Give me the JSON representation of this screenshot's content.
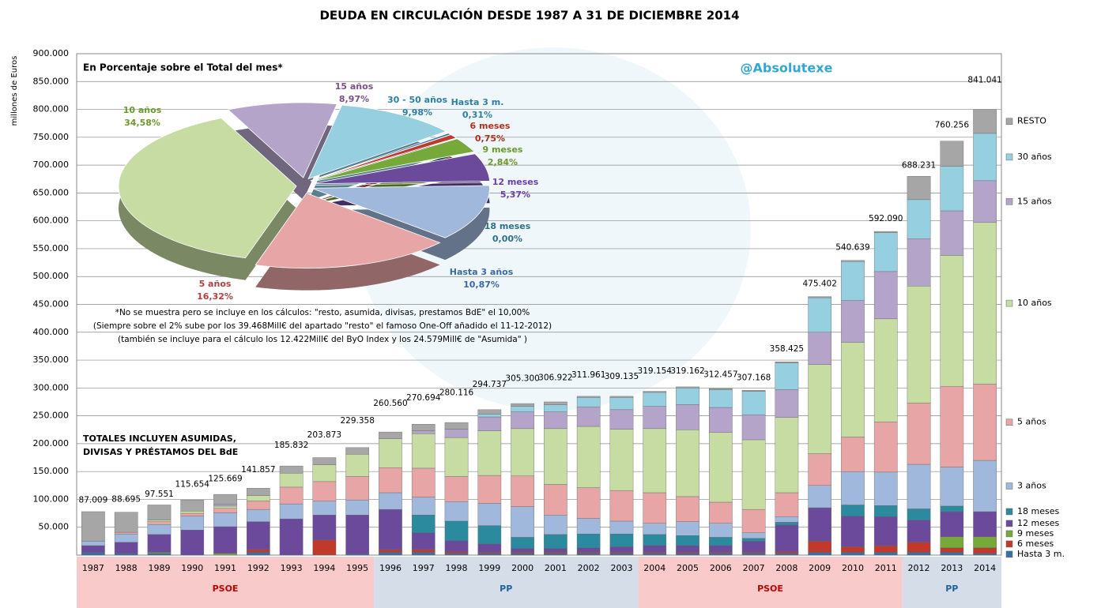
{
  "chart_data": [
    {
      "type": "bar",
      "stacked": true,
      "title": "DEUDA EN CIRCULACIÓN DESDE 1987 A 31 DE DICIEMBRE 2014",
      "y_axis_label": "millones de Euros",
      "categories": [
        "1987",
        "1988",
        "1989",
        "1990",
        "1991",
        "1992",
        "1993",
        "1994",
        "1995",
        "1996",
        "1997",
        "1998",
        "1999",
        "2000",
        "2001",
        "2002",
        "2003",
        "2004",
        "2005",
        "2006",
        "2007",
        "2008",
        "2009",
        "2010",
        "2011",
        "2012",
        "2013",
        "2014"
      ],
      "series": [
        {
          "name": "Hasta 3 m.",
          "color": "#3a6ea5",
          "values": [
            5000,
            3000,
            3000,
            0,
            0,
            5000,
            0,
            0,
            2000,
            5000,
            5000,
            3000,
            3000,
            3000,
            3000,
            3000,
            3000,
            3000,
            3000,
            3000,
            3000,
            3000,
            5000,
            5000,
            5000,
            5000,
            5000,
            3000
          ]
        },
        {
          "name": "6 meses",
          "color": "#c0392b",
          "values": [
            0,
            0,
            0,
            0,
            0,
            5000,
            0,
            27000,
            0,
            5000,
            5000,
            3000,
            2000,
            2000,
            2000,
            2000,
            2000,
            2000,
            2000,
            2000,
            2000,
            3000,
            20000,
            10000,
            12000,
            18000,
            8000,
            10000
          ]
        },
        {
          "name": "9 meses",
          "color": "#77a83a",
          "values": [
            0,
            0,
            2000,
            0,
            3000,
            0,
            0,
            0,
            0,
            0,
            0,
            0,
            0,
            0,
            0,
            0,
            0,
            0,
            0,
            0,
            0,
            0,
            0,
            0,
            0,
            0,
            20000,
            20000
          ]
        },
        {
          "name": "12 meses",
          "color": "#6b4a9c",
          "values": [
            12000,
            20000,
            32000,
            45000,
            48000,
            50000,
            65000,
            45000,
            70000,
            72000,
            30000,
            20000,
            15000,
            7000,
            7000,
            8000,
            10000,
            12000,
            12000,
            12000,
            20000,
            48000,
            60000,
            55000,
            52000,
            40000,
            45000,
            45000
          ]
        },
        {
          "name": "18 meses",
          "color": "#2b8a9e",
          "values": [
            0,
            0,
            0,
            0,
            0,
            0,
            0,
            0,
            0,
            0,
            32000,
            35000,
            33000,
            20000,
            25000,
            25000,
            23000,
            20000,
            18000,
            15000,
            5000,
            5000,
            0,
            20000,
            20000,
            20000,
            10000,
            0
          ]
        },
        {
          "name": "3 años",
          "color": "#9fb8dc",
          "values": [
            8000,
            15000,
            18000,
            25000,
            25000,
            22000,
            27000,
            25000,
            27000,
            30000,
            32000,
            35000,
            40000,
            55000,
            35000,
            28000,
            23000,
            20000,
            25000,
            25000,
            10000,
            10000,
            40000,
            60000,
            60000,
            80000,
            70000,
            92000
          ]
        },
        {
          "name": "5 años",
          "color": "#e8a5a5",
          "values": [
            0,
            3000,
            5000,
            5000,
            8000,
            15000,
            30000,
            35000,
            42000,
            45000,
            52000,
            45000,
            50000,
            55000,
            55000,
            55000,
            55000,
            55000,
            45000,
            38000,
            42000,
            43000,
            57000,
            62000,
            90000,
            110000,
            145000,
            137000
          ]
        },
        {
          "name": "10 años",
          "color": "#c6dca2",
          "values": [
            0,
            0,
            3000,
            4000,
            4000,
            10000,
            25000,
            30000,
            40000,
            52000,
            62000,
            70000,
            80000,
            85000,
            100000,
            110000,
            110000,
            115000,
            120000,
            125000,
            125000,
            135000,
            160000,
            170000,
            185000,
            210000,
            235000,
            290000
          ]
        },
        {
          "name": "15 años",
          "color": "#b4a4c9",
          "values": [
            0,
            0,
            0,
            0,
            3000,
            0,
            0,
            0,
            0,
            0,
            5000,
            15000,
            25000,
            30000,
            30000,
            35000,
            35000,
            40000,
            45000,
            45000,
            45000,
            50000,
            58000,
            75000,
            85000,
            85000,
            80000,
            75000
          ]
        },
        {
          "name": "30 años",
          "color": "#95cfe0",
          "values": [
            0,
            0,
            0,
            0,
            0,
            0,
            0,
            0,
            0,
            0,
            0,
            0,
            5000,
            10000,
            13000,
            17000,
            22000,
            25000,
            30000,
            32000,
            42000,
            48000,
            62000,
            70000,
            70000,
            70000,
            80000,
            85000
          ]
        },
        {
          "name": "RESTO",
          "color": "#a6a6a6",
          "values": [
            53000,
            36000,
            27000,
            20000,
            18000,
            13000,
            13000,
            13000,
            12000,
            12000,
            12000,
            12000,
            8000,
            5000,
            5000,
            2000,
            2000,
            2000,
            2000,
            2000,
            2000,
            2000,
            2000,
            2000,
            2000,
            42000,
            45000,
            43000
          ]
        }
      ],
      "totals": {
        "values": [
          87009,
          88695,
          97551,
          115654,
          125669,
          141857,
          185832,
          203873,
          229358,
          260560,
          270694,
          280116,
          294737,
          305300,
          306922,
          311961,
          309135,
          319154,
          319162,
          312457,
          307168,
          358425,
          475402,
          540639,
          592090,
          688231,
          760256,
          841041
        ],
        "value_labels": [
          "87.009",
          "88.695",
          "97.551",
          "115.654",
          "125.669",
          "141.857",
          "185.832",
          "203.873",
          "229.358",
          "260.560",
          "270.694",
          "280.116",
          "294.737",
          "305.300",
          "306.922",
          "311.961",
          "309.135",
          "319.154",
          "319.162",
          "312.457",
          "307.168",
          "358.425",
          "475.402",
          "540.639",
          "592.090",
          "688.231",
          "760.256",
          "841.041"
        ]
      },
      "ylim": [
        0,
        900000
      ],
      "yticks": [
        {
          "value": 50000,
          "label": "50.000"
        },
        {
          "value": 100000,
          "label": "100.000"
        },
        {
          "value": 150000,
          "label": "150.000"
        },
        {
          "value": 200000,
          "label": "200.000"
        },
        {
          "value": 250000,
          "label": "250.000"
        },
        {
          "value": 300000,
          "label": "300.000"
        },
        {
          "value": 350000,
          "label": "350.000"
        },
        {
          "value": 400000,
          "label": "400.000"
        },
        {
          "value": 450000,
          "label": "450.000"
        },
        {
          "value": 500000,
          "label": "500.000"
        },
        {
          "value": 550000,
          "label": "550.000"
        },
        {
          "value": 600000,
          "label": "600.000"
        },
        {
          "value": 650000,
          "label": "650.000"
        },
        {
          "value": 700000,
          "label": "700.000"
        },
        {
          "value": 750000,
          "label": "750.000"
        },
        {
          "value": 800000,
          "label": "800.000"
        },
        {
          "value": 850000,
          "label": "850.000"
        },
        {
          "value": 900000,
          "label": "900.000"
        }
      ],
      "grid": true,
      "legend": "right",
      "totals_note": [
        "TOTALES INCLUYEN ASUMIDAS,",
        "DIVISAS Y PRÉSTAMOS  DEL BdE"
      ],
      "governments": [
        "PSOE",
        "PP",
        "PSOE",
        "PP"
      ],
      "watermark": "@Absolutexe"
    },
    {
      "type": "pie",
      "title": "En Porcentaje sobre el Total del mes*",
      "labels": [
        "15 años",
        "30 - 50 años",
        "Hasta 3 m.",
        "6 meses",
        "9 meses",
        "12 meses",
        "18 meses",
        "Hasta 3 años",
        "5 años",
        "10 años"
      ],
      "values": [
        8.97,
        9.98,
        0.31,
        0.75,
        2.84,
        5.37,
        0.0,
        10.87,
        16.32,
        34.58
      ],
      "value_labels": [
        "8,97%",
        "9,98%",
        "0,31%",
        "0,75%",
        "2,84%",
        "5,37%",
        "0,00%",
        "10,87%",
        "16,32%",
        "34,58%"
      ],
      "colors": [
        "#b4a4c9",
        "#95cfe0",
        "#3a6ea5",
        "#c0392b",
        "#77a83a",
        "#6b4a9c",
        "#2b8a9e",
        "#9fb8dc",
        "#e8a5a5",
        "#c6dca2"
      ],
      "label_colors": [
        "#7a4f8a",
        "#2e7fa0",
        "#2e7fa0",
        "#b03020",
        "#6a9a2a",
        "#6b3fa8",
        "#2e6f8a",
        "#3a6aa0",
        "#b04040",
        "#6a9a2a"
      ],
      "notes": [
        "*No se muestra pero se incluye en los cálculos: \"resto, asumida, divisas, prestamos BdE\" el 10,00%",
        "(Siempre sobre el 2% sube por los 39.468Mill€ del apartado  \"resto\" el famoso  One-Off añadido el 11-12-2012)",
        "(también se incluye para el cálculo los 12.422Mill€ del ByO Index y los 24.579Mill€ de \"Asumida\" )"
      ]
    }
  ]
}
